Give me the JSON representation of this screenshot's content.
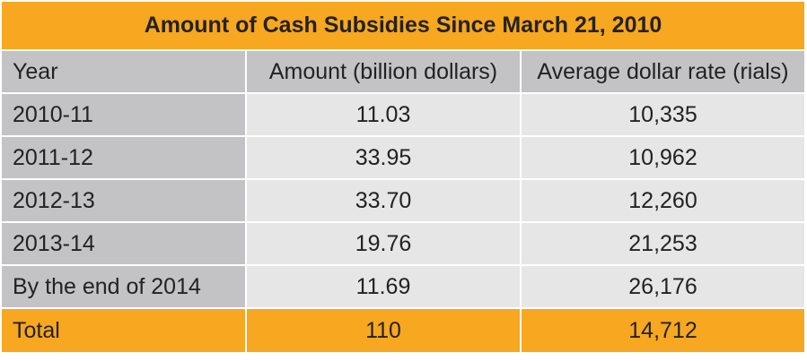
{
  "title": "Amount of Cash Subsidies Since March 21, 2010",
  "colors": {
    "accent": "#f7a720",
    "header_bg": "#c3c3c5",
    "row_label_bg": "#c3c3c5",
    "cell_bg": "#e6e6e7"
  },
  "chart_data": {
    "type": "table",
    "title": "Amount of Cash Subsidies Since March 21, 2010",
    "columns": [
      "Year",
      "Amount (billion dollars)",
      "Average dollar rate (rials)"
    ],
    "rows": [
      [
        "2010-11",
        "11.03",
        "10,335"
      ],
      [
        "2011-12",
        "33.95",
        "10,962"
      ],
      [
        "2012-13",
        "33.70",
        "12,260"
      ],
      [
        "2013-14",
        "19.76",
        "21,253"
      ],
      [
        "By the end of 2014",
        "11.69",
        "26,176"
      ]
    ],
    "total": [
      "Total",
      "110",
      "14,712"
    ]
  }
}
